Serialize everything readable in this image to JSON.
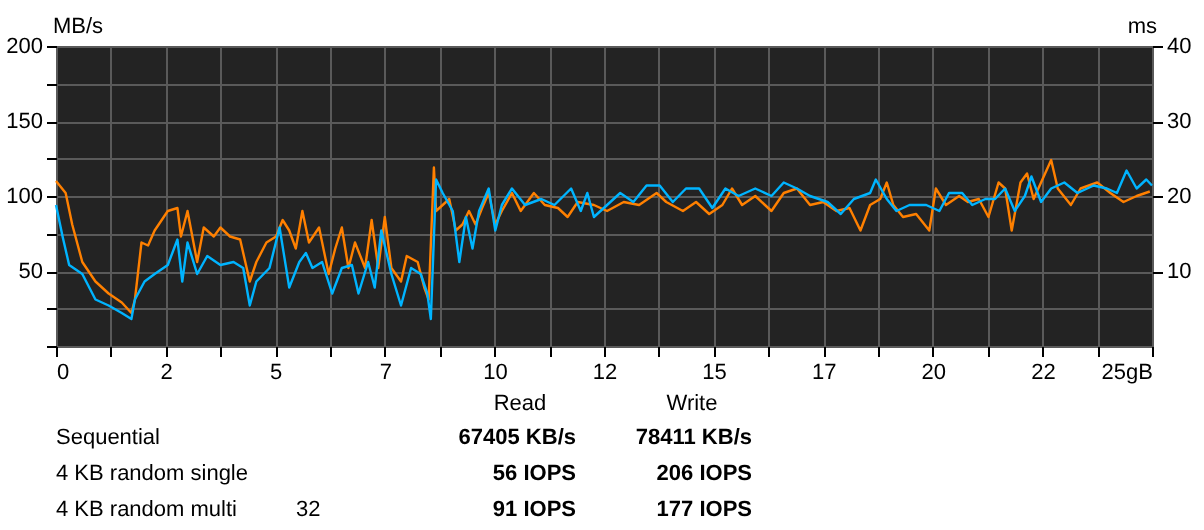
{
  "chart_data": {
    "type": "line",
    "ylabel": "MB/s",
    "y2label": "ms",
    "series": [
      {
        "color": "#ff8000",
        "x": [
          0,
          0.22,
          0.37,
          0.6,
          0.9,
          1.2,
          1.5,
          1.72,
          1.8,
          1.95,
          2.1,
          2.25,
          2.55,
          2.77,
          2.85,
          3.0,
          3.22,
          3.37,
          3.6,
          3.75,
          3.97,
          4.2,
          4.42,
          4.57,
          4.8,
          5.02,
          5.17,
          5.32,
          5.47,
          5.62,
          5.77,
          6.0,
          6.22,
          6.37,
          6.52,
          6.67,
          6.82,
          7.05,
          7.2,
          7.35,
          7.5,
          7.65,
          7.87,
          8.0,
          8.25,
          8.4,
          8.5,
          8.62,
          8.67,
          8.82,
          8.97,
          9.12,
          9.27,
          9.42,
          9.57,
          9.72,
          9.87,
          10.02,
          10.17,
          10.4,
          10.6,
          10.9,
          11.15,
          11.45,
          11.67,
          11.9,
          12.27,
          12.57,
          12.95,
          13.3,
          13.7,
          13.92,
          14.3,
          14.6,
          14.9,
          15.2,
          15.42,
          15.65,
          15.95,
          16.32,
          16.6,
          16.9,
          17.2,
          17.5,
          17.8,
          18.1,
          18.35,
          18.57,
          18.8,
          18.95,
          19.1,
          19.32,
          19.62,
          19.92,
          20.07,
          20.3,
          20.6,
          20.8,
          21.05,
          21.27,
          21.5,
          21.65,
          21.8,
          22.0,
          22.15,
          22.3,
          22.7,
          22.85,
          23.15,
          23.37,
          23.75,
          24.05,
          24.35,
          24.65,
          24.95
        ],
        "values": [
          110,
          102,
          81,
          56,
          43,
          35,
          29,
          22,
          31,
          69,
          67,
          77,
          90,
          92,
          73,
          90,
          56,
          79,
          73,
          79,
          73,
          71,
          43,
          56,
          69,
          73,
          84,
          77,
          65,
          90,
          69,
          79,
          48,
          65,
          79,
          52,
          69,
          52,
          84,
          52,
          86,
          52,
          43,
          60,
          56,
          39,
          31,
          119,
          90,
          94,
          98,
          77,
          81,
          90,
          81,
          92,
          102,
          81,
          90,
          102,
          90,
          102,
          94,
          92,
          86,
          96,
          94,
          90,
          96,
          94,
          102,
          96,
          90,
          96,
          88,
          94,
          105,
          94,
          100,
          90,
          102,
          105,
          94,
          96,
          90,
          92,
          77,
          94,
          98,
          109,
          94,
          86,
          88,
          77,
          105,
          94,
          100,
          96,
          98,
          86,
          109,
          105,
          77,
          109,
          115,
          98,
          124,
          105,
          94,
          105,
          109,
          102,
          96,
          100,
          103
        ]
      },
      {
        "color": "#00b4ff",
        "x": [
          0,
          0.15,
          0.3,
          0.6,
          0.9,
          1.2,
          1.5,
          1.72,
          1.8,
          2.02,
          2.25,
          2.55,
          2.77,
          2.88,
          3.0,
          3.22,
          3.45,
          3.75,
          4.05,
          4.27,
          4.42,
          4.57,
          4.87,
          5.1,
          5.32,
          5.55,
          5.7,
          5.85,
          6.07,
          6.3,
          6.52,
          6.75,
          6.9,
          7.12,
          7.27,
          7.42,
          7.65,
          7.87,
          8.1,
          8.32,
          8.47,
          8.55,
          8.67,
          8.82,
          9.05,
          9.2,
          9.35,
          9.5,
          9.65,
          9.87,
          10.02,
          10.17,
          10.4,
          10.7,
          11.07,
          11.37,
          11.75,
          11.97,
          12.12,
          12.27,
          12.57,
          12.87,
          13.17,
          13.47,
          13.77,
          14.07,
          14.37,
          14.67,
          14.97,
          15.27,
          15.57,
          15.95,
          16.32,
          16.6,
          16.9,
          17.2,
          17.6,
          17.9,
          18.2,
          18.57,
          18.7,
          18.95,
          19.17,
          19.47,
          19.85,
          20.15,
          20.37,
          20.67,
          20.9,
          21.2,
          21.42,
          21.65,
          21.87,
          22.1,
          22.25,
          22.47,
          22.7,
          23.0,
          23.3,
          23.67,
          23.97,
          24.2,
          24.42,
          24.65,
          24.87,
          25.0
        ],
        "values": [
          94,
          73,
          54,
          48,
          31,
          27,
          22,
          18,
          31,
          43,
          48,
          54,
          71,
          43,
          69,
          48,
          60,
          54,
          56,
          52,
          27,
          43,
          52,
          79,
          39,
          56,
          62,
          52,
          56,
          35,
          52,
          54,
          35,
          56,
          39,
          77,
          48,
          27,
          52,
          48,
          35,
          18,
          111,
          102,
          90,
          56,
          86,
          65,
          90,
          105,
          77,
          94,
          105,
          94,
          98,
          94,
          105,
          90,
          102,
          86,
          94,
          102,
          96,
          107,
          107,
          96,
          105,
          105,
          92,
          105,
          100,
          105,
          100,
          109,
          105,
          100,
          96,
          88,
          98,
          102,
          111,
          98,
          90,
          94,
          94,
          90,
          102,
          102,
          94,
          98,
          98,
          105,
          90,
          100,
          113,
          96,
          105,
          109,
          102,
          107,
          105,
          102,
          117,
          105,
          111,
          107
        ]
      }
    ],
    "xlim": [
      0,
      25
    ],
    "xticks": [
      0,
      {
        "value": 1.25,
        "label": null
      },
      {
        "value": 2.5,
        "label": "2"
      },
      {
        "value": 3.75,
        "label": null
      },
      5,
      {
        "value": 6.25,
        "label": null
      },
      {
        "value": 7.5,
        "label": "7"
      },
      {
        "value": 8.75,
        "label": null
      },
      10,
      {
        "value": 11.25,
        "label": null
      },
      {
        "value": 12.5,
        "label": "12"
      },
      {
        "value": 13.75,
        "label": null
      },
      15,
      {
        "value": 16.25,
        "label": null
      },
      {
        "value": 17.5,
        "label": "17"
      },
      {
        "value": 18.75,
        "label": null
      },
      20,
      {
        "value": 21.25,
        "label": null
      },
      {
        "value": 22.5,
        "label": "22"
      },
      {
        "value": 23.75,
        "label": null
      },
      {
        "value": 25,
        "label": "25gB"
      }
    ],
    "ylim": [
      0,
      200
    ],
    "yticks": [
      {
        "value": 0,
        "label": null
      },
      {
        "value": 25,
        "label": null
      },
      50,
      {
        "value": 75,
        "label": null
      },
      100,
      {
        "value": 125,
        "label": null
      },
      150,
      {
        "value": 175,
        "label": null
      },
      200
    ],
    "y2lim": [
      0,
      40
    ],
    "y2ticks": [
      10,
      20,
      30,
      40
    ],
    "grid": true,
    "annotations": [
      "Read",
      "Write",
      "Sequential",
      "67405 KB/s",
      "78411 KB/s",
      "4 KB random single",
      "56 IOPS",
      "206 IOPS",
      "4 KB random multi",
      "32",
      "91 IOPS",
      "177 IOPS"
    ]
  }
}
